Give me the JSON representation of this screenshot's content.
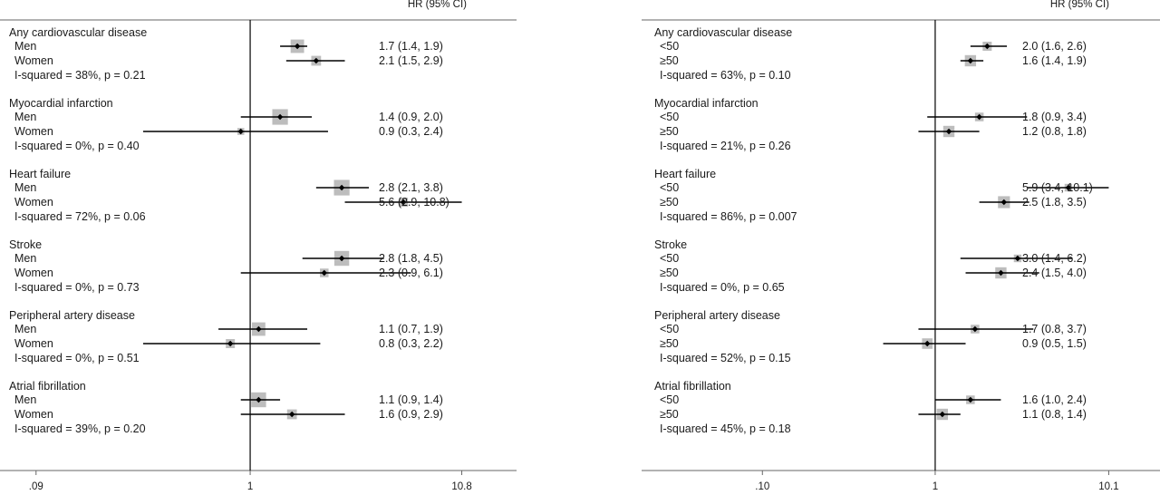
{
  "chart_data": [
    {
      "type": "forest",
      "header": "HR (95% CI)",
      "xscale": "log",
      "xlim": [
        0.06,
        20
      ],
      "xticks": [
        {
          "value": 0.09,
          "label": ".09"
        },
        {
          "value": 1,
          "label": "1"
        },
        {
          "value": 10.8,
          "label": "10.8"
        }
      ],
      "reference_line": 1,
      "groups": [
        {
          "name": "Any cardiovascular disease",
          "rows": [
            {
              "label": "Men",
              "hr": 1.7,
              "lo": 1.4,
              "hi": 1.9,
              "text": "1.7 (1.4, 1.9)",
              "weight": 0.55
            },
            {
              "label": "Women",
              "hr": 2.1,
              "lo": 1.5,
              "hi": 2.9,
              "text": "2.1 (1.5, 2.9)",
              "weight": 0.3
            }
          ],
          "heterogeneity": "I-squared = 38%, p = 0.21"
        },
        {
          "name": "Myocardial infarction",
          "rows": [
            {
              "label": "Men",
              "hr": 1.4,
              "lo": 0.9,
              "hi": 2.0,
              "text": "1.4 (0.9, 2.0)",
              "weight": 0.7
            },
            {
              "label": "Women",
              "hr": 0.9,
              "lo": 0.3,
              "hi": 2.4,
              "text": "0.9 (0.3, 2.4)",
              "weight": 0.1
            }
          ],
          "heterogeneity": "I-squared = 0%, p = 0.40"
        },
        {
          "name": "Heart failure",
          "rows": [
            {
              "label": "Men",
              "hr": 2.8,
              "lo": 2.1,
              "hi": 3.8,
              "text": "2.8 (2.1, 3.8)",
              "weight": 0.7
            },
            {
              "label": "Women",
              "hr": 5.6,
              "lo": 2.9,
              "hi": 10.8,
              "text": "5.6 (2.9, 10.8)",
              "weight": 0.25
            }
          ],
          "heterogeneity": "I-squared = 72%, p = 0.06"
        },
        {
          "name": "Stroke",
          "rows": [
            {
              "label": "Men",
              "hr": 2.8,
              "lo": 1.8,
              "hi": 4.5,
              "text": "2.8 (1.8, 4.5)",
              "weight": 0.65
            },
            {
              "label": "Women",
              "hr": 2.3,
              "lo": 0.9,
              "hi": 6.1,
              "text": "2.3 (0.9, 6.1)",
              "weight": 0.22
            }
          ],
          "heterogeneity": "I-squared = 0%, p = 0.73"
        },
        {
          "name": "Peripheral artery disease",
          "rows": [
            {
              "label": "Men",
              "hr": 1.1,
              "lo": 0.7,
              "hi": 1.9,
              "text": "1.1 (0.7, 1.9)",
              "weight": 0.55
            },
            {
              "label": "Women",
              "hr": 0.8,
              "lo": 0.3,
              "hi": 2.2,
              "text": "0.8 (0.3, 2.2)",
              "weight": 0.25
            }
          ],
          "heterogeneity": "I-squared = 0%, p = 0.51"
        },
        {
          "name": "Atrial fibrillation",
          "rows": [
            {
              "label": "Men",
              "hr": 1.1,
              "lo": 0.9,
              "hi": 1.4,
              "text": "1.1 (0.9, 1.4)",
              "weight": 0.65
            },
            {
              "label": "Women",
              "hr": 1.6,
              "lo": 0.9,
              "hi": 2.9,
              "text": "1.6 (0.9, 2.9)",
              "weight": 0.3
            }
          ],
          "heterogeneity": "I-squared = 39%, p = 0.20"
        }
      ]
    },
    {
      "type": "forest",
      "header": "HR (95% CI)",
      "xscale": "log",
      "xlim": [
        0.02,
        20
      ],
      "xticks": [
        {
          "value": 0.1,
          "label": ".10"
        },
        {
          "value": 1,
          "label": "1"
        },
        {
          "value": 10.1,
          "label": "10.1"
        }
      ],
      "reference_line": 1,
      "groups": [
        {
          "name": "Any cardiovascular disease",
          "rows": [
            {
              "label": "<50",
              "hr": 2.0,
              "lo": 1.6,
              "hi": 2.6,
              "text": "2.0 (1.6, 2.6)",
              "weight": 0.25
            },
            {
              "label": "≥50",
              "hr": 1.6,
              "lo": 1.4,
              "hi": 1.9,
              "text": "1.6 (1.4, 1.9)",
              "weight": 0.4
            }
          ],
          "heterogeneity": "I-squared = 63%, p = 0.10"
        },
        {
          "name": "Myocardial infarction",
          "rows": [
            {
              "label": "<50",
              "hr": 1.8,
              "lo": 0.9,
              "hi": 3.4,
              "text": "1.8 (0.9, 3.4)",
              "weight": 0.22
            },
            {
              "label": "≥50",
              "hr": 1.2,
              "lo": 0.8,
              "hi": 1.8,
              "text": "1.2 (0.8, 1.8)",
              "weight": 0.4
            }
          ],
          "heterogeneity": "I-squared = 21%, p = 0.26"
        },
        {
          "name": "Heart failure",
          "rows": [
            {
              "label": "<50",
              "hr": 5.9,
              "lo": 3.4,
              "hi": 10.1,
              "text": "5.9 (3.4, 10.1)",
              "weight": 0.15
            },
            {
              "label": "≥50",
              "hr": 2.5,
              "lo": 1.8,
              "hi": 3.5,
              "text": "2.5 (1.8, 3.5)",
              "weight": 0.45
            }
          ],
          "heterogeneity": "I-squared = 86%, p = 0.007"
        },
        {
          "name": "Stroke",
          "rows": [
            {
              "label": "<50",
              "hr": 3.0,
              "lo": 1.4,
              "hi": 6.2,
              "text": "3.0 (1.4, 6.2)",
              "weight": 0.15
            },
            {
              "label": "≥50",
              "hr": 2.4,
              "lo": 1.5,
              "hi": 4.0,
              "text": "2.4 (1.5, 4.0)",
              "weight": 0.4
            }
          ],
          "heterogeneity": "I-squared = 0%, p = 0.65"
        },
        {
          "name": "Peripheral artery disease",
          "rows": [
            {
              "label": "<50",
              "hr": 1.7,
              "lo": 0.8,
              "hi": 3.7,
              "text": "1.7 (0.8, 3.7)",
              "weight": 0.22
            },
            {
              "label": "≥50",
              "hr": 0.9,
              "lo": 0.5,
              "hi": 1.5,
              "text": "0.9 (0.5, 1.5)",
              "weight": 0.35
            }
          ],
          "heterogeneity": "I-squared = 52%, p = 0.15"
        },
        {
          "name": "Atrial fibrillation",
          "rows": [
            {
              "label": "<50",
              "hr": 1.6,
              "lo": 1.0,
              "hi": 2.4,
              "text": "1.6 (1.0, 2.4)",
              "weight": 0.22
            },
            {
              "label": "≥50",
              "hr": 1.1,
              "lo": 0.8,
              "hi": 1.4,
              "text": "1.1 (0.8, 1.4)",
              "weight": 0.4
            }
          ],
          "heterogeneity": "I-squared = 45%, p = 0.18"
        }
      ]
    }
  ]
}
